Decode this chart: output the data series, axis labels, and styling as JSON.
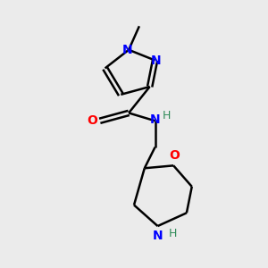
{
  "background_color": "#ebebeb",
  "bond_color": "#000000",
  "N_color": "#0000ff",
  "O_color": "#ff0000",
  "NH_color": "#2e8b57",
  "figsize": [
    3.0,
    3.0
  ],
  "dpi": 100,
  "xlim": [
    0,
    10
  ],
  "ylim": [
    0,
    10
  ]
}
